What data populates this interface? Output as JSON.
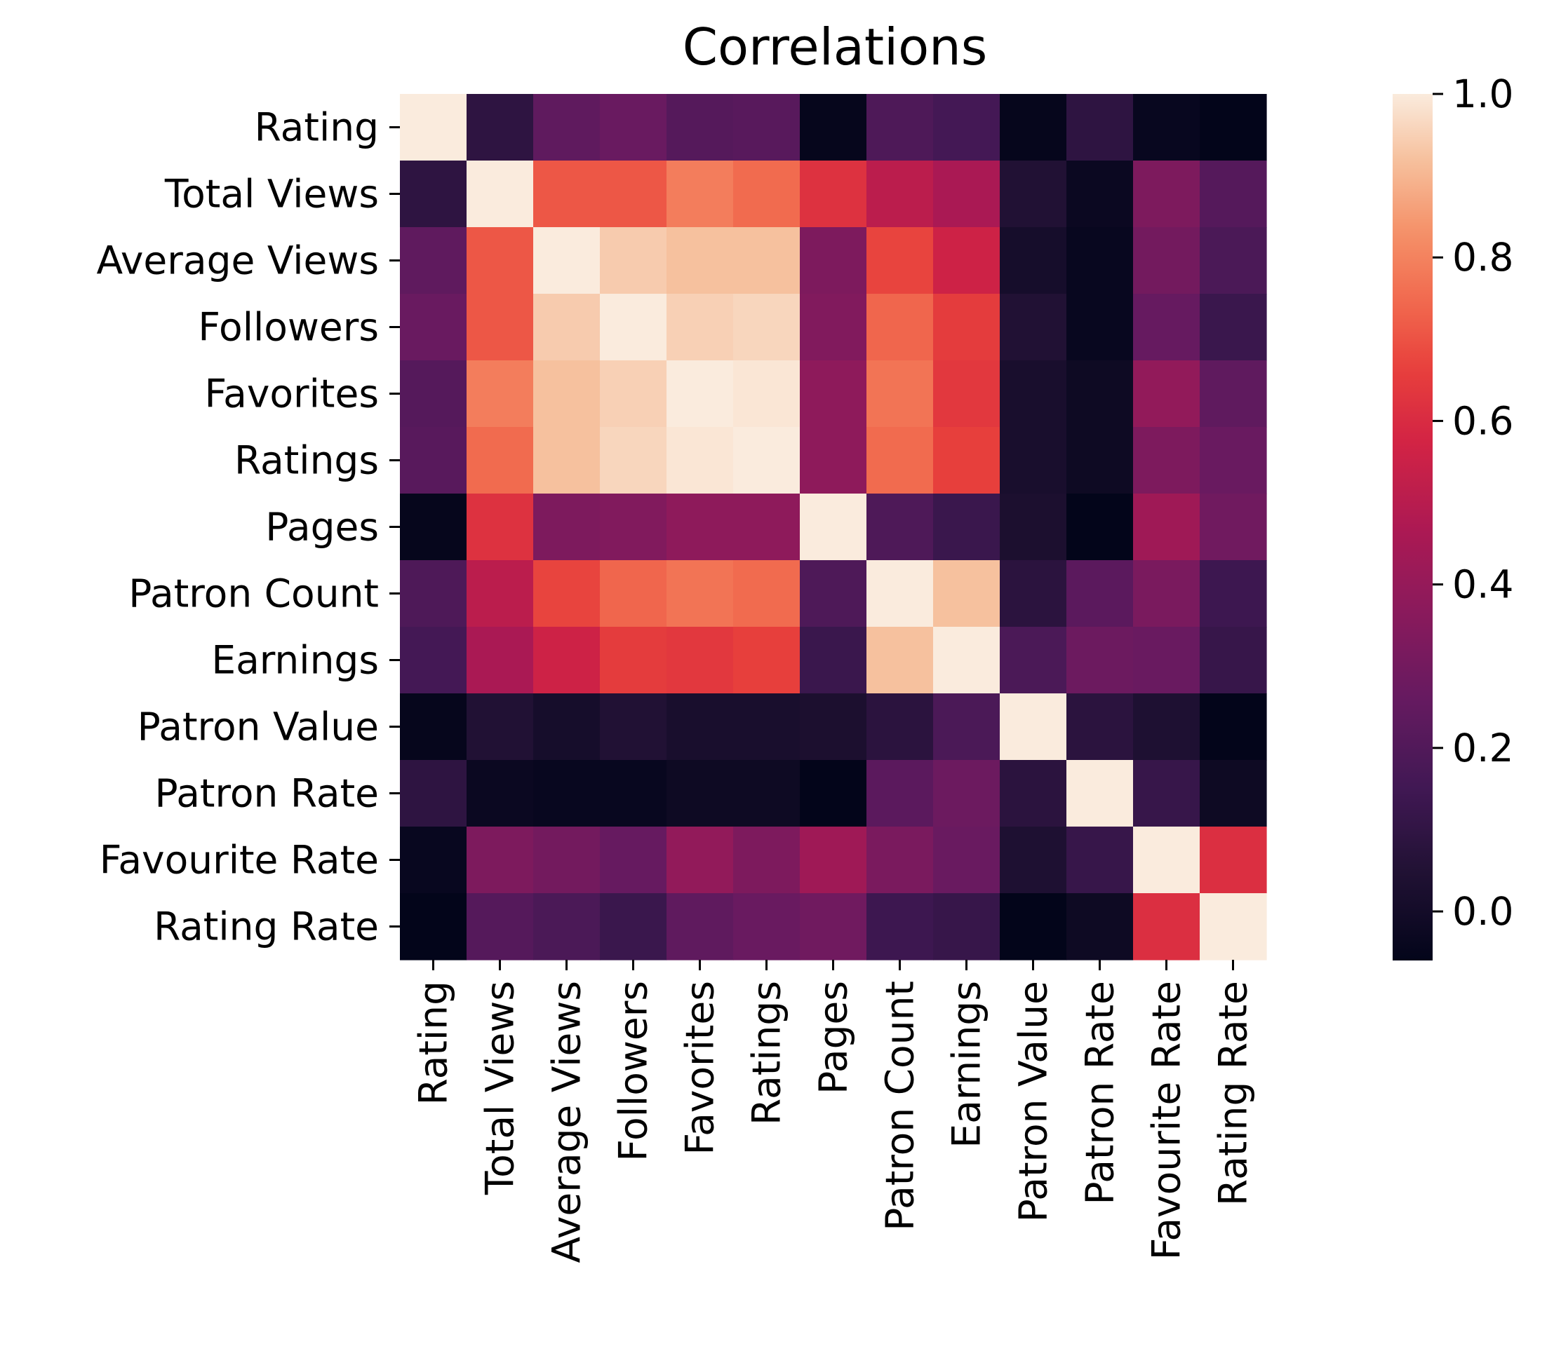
{
  "chart_data": {
    "type": "heatmap",
    "title": "Correlations",
    "xlabel": "",
    "ylabel": "",
    "labels": [
      "Rating",
      "Total Views",
      "Average Views",
      "Followers",
      "Favorites",
      "Ratings",
      "Pages",
      "Patron Count",
      "Earnings",
      "Patron Value",
      "Patron Rate",
      "Favourite Rate",
      "Rating Rate"
    ],
    "matrix": [
      [
        1.0,
        0.09,
        0.24,
        0.27,
        0.21,
        0.22,
        -0.05,
        0.19,
        0.16,
        -0.05,
        0.09,
        -0.04,
        -0.06
      ],
      [
        0.09,
        1.0,
        0.71,
        0.71,
        0.79,
        0.75,
        0.62,
        0.51,
        0.46,
        0.05,
        -0.03,
        0.33,
        0.21
      ],
      [
        0.24,
        0.71,
        1.0,
        0.94,
        0.92,
        0.92,
        0.33,
        0.67,
        0.56,
        0.01,
        -0.04,
        0.3,
        0.18
      ],
      [
        0.27,
        0.71,
        0.94,
        1.0,
        0.95,
        0.96,
        0.34,
        0.74,
        0.65,
        0.05,
        -0.04,
        0.26,
        0.13
      ],
      [
        0.21,
        0.79,
        0.92,
        0.95,
        1.0,
        0.99,
        0.38,
        0.77,
        0.64,
        0.02,
        -0.02,
        0.39,
        0.24
      ],
      [
        0.22,
        0.75,
        0.92,
        0.96,
        0.99,
        1.0,
        0.38,
        0.75,
        0.66,
        0.02,
        -0.02,
        0.33,
        0.27
      ],
      [
        -0.05,
        0.62,
        0.33,
        0.34,
        0.38,
        0.38,
        1.0,
        0.19,
        0.13,
        0.03,
        -0.06,
        0.43,
        0.29
      ],
      [
        0.19,
        0.51,
        0.67,
        0.74,
        0.77,
        0.75,
        0.19,
        1.0,
        0.92,
        0.08,
        0.23,
        0.32,
        0.14
      ],
      [
        0.16,
        0.46,
        0.56,
        0.65,
        0.64,
        0.66,
        0.13,
        0.92,
        1.0,
        0.18,
        0.28,
        0.27,
        0.12
      ],
      [
        -0.05,
        0.05,
        0.01,
        0.05,
        0.02,
        0.02,
        0.03,
        0.08,
        0.18,
        1.0,
        0.08,
        0.04,
        -0.06
      ],
      [
        0.09,
        -0.03,
        -0.04,
        -0.04,
        -0.02,
        -0.02,
        -0.06,
        0.23,
        0.28,
        0.08,
        1.0,
        0.12,
        -0.02
      ],
      [
        -0.04,
        0.33,
        0.3,
        0.26,
        0.39,
        0.33,
        0.43,
        0.32,
        0.27,
        0.04,
        0.12,
        1.0,
        0.61
      ],
      [
        -0.06,
        0.21,
        0.18,
        0.13,
        0.24,
        0.27,
        0.29,
        0.14,
        0.12,
        -0.06,
        -0.02,
        0.61,
        1.0
      ]
    ],
    "colorbar": {
      "range": [
        -0.06,
        1.0
      ],
      "ticks": [
        0.0,
        0.2,
        0.4,
        0.6,
        0.8,
        1.0
      ],
      "tick_labels": [
        "0.0",
        "0.2",
        "0.4",
        "0.6",
        "0.8",
        "1.0"
      ],
      "colormap": "rocket"
    }
  }
}
